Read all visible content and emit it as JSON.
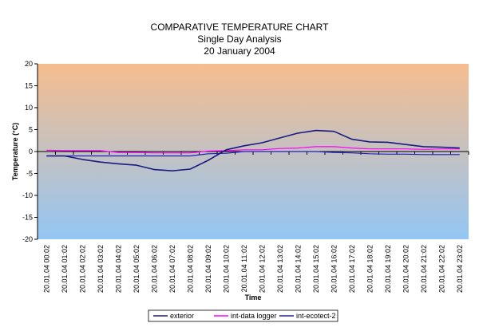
{
  "chart_data": {
    "type": "line",
    "title": "COMPARATIVE TEMPERATURE CHART",
    "subtitle": "Single Day Analysis",
    "date": "20 January 2004",
    "xlabel": "Time",
    "ylabel": "Temperature (°C)",
    "ylim": [
      -20,
      20
    ],
    "y_ticks": [
      20,
      15,
      10,
      5,
      0,
      -5,
      -10,
      -15,
      -20
    ],
    "categories": [
      "20.01.04 00:02",
      "20.01.04 01:02",
      "20.01.04 02:02",
      "20.01.04 03:02",
      "20.01.04 04:02",
      "20.01.04 05:02",
      "20.01.04 06:02",
      "20.01.04 07:02",
      "20.01.04 08:02",
      "20.01.04 09:02",
      "20.01.04 10:02",
      "20.01.04 11:02",
      "20.01.04 12:02",
      "20.01.04 13:02",
      "20.01.04 14:02",
      "20.01.04 15:02",
      "20.01.04 16:02",
      "20.01.04 17:02",
      "20.01.04 18:02",
      "20.01.04 19:02",
      "20.01.04 20:02",
      "20.01.04 21:02",
      "20.01.04 22:02",
      "20.01.04 23:02"
    ],
    "series": [
      {
        "name": "exterior",
        "color": "#1a1a80",
        "values": [
          -1,
          -1,
          -1.8,
          -2.4,
          -2.8,
          -3.1,
          -4.1,
          -4.4,
          -4,
          -2,
          0.4,
          1.3,
          2,
          3.1,
          4.2,
          4.8,
          4.6,
          2.8,
          2.2,
          2.1,
          1.6,
          1.1,
          1,
          0.8
        ]
      },
      {
        "name": "int-data logger",
        "color": "#ff00ff",
        "values": [
          0.3,
          0.2,
          0.2,
          0.2,
          -0.2,
          -0.2,
          -0.3,
          -0.3,
          -0.3,
          0.1,
          0.2,
          0.4,
          0.4,
          0.7,
          0.8,
          1.1,
          1.1,
          0.8,
          0.6,
          0.6,
          0.6,
          0.5,
          0.6,
          0.6
        ]
      },
      {
        "name": "int-ecotect-2",
        "color": "#1f1fc0",
        "values": [
          -1,
          -1,
          -1,
          -1,
          -1,
          -1,
          -1,
          -1,
          -1,
          -0.5,
          -0.4,
          0,
          0,
          0,
          0,
          0,
          -0.2,
          -0.3,
          -0.5,
          -0.6,
          -0.6,
          -0.7,
          -0.7,
          -0.7
        ]
      }
    ],
    "background_gradient": {
      "top": "#f6bd8e",
      "bottom": "#93c6f4"
    },
    "grid": false,
    "legend_position": "bottom"
  }
}
